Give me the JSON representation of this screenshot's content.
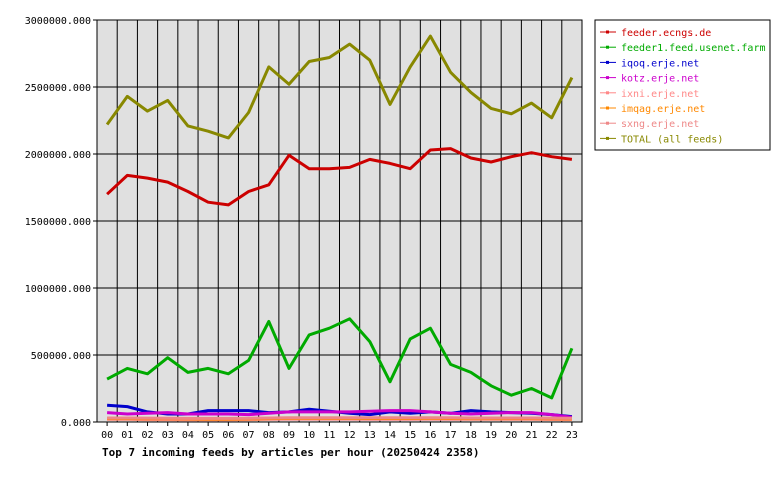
{
  "chart_data": {
    "type": "line",
    "title": "Top 7 incoming feeds by articles per hour (20250424 2358)",
    "xlabel": "",
    "ylabel": "",
    "categories": [
      "00",
      "01",
      "02",
      "03",
      "04",
      "05",
      "06",
      "07",
      "08",
      "09",
      "10",
      "11",
      "12",
      "13",
      "14",
      "15",
      "16",
      "17",
      "18",
      "19",
      "20",
      "21",
      "22",
      "23"
    ],
    "ylim": [
      0,
      3000000
    ],
    "yticks": [
      0,
      500000,
      1000000,
      1500000,
      2000000,
      2500000,
      3000000
    ],
    "ytick_labels": [
      "0.000",
      "500000.000",
      "1000000.000",
      "1500000.000",
      "2000000.000",
      "2500000.000",
      "3000000.000"
    ],
    "grid": true,
    "legend_position": "right",
    "series": [
      {
        "name": "feeder.ecngs.de",
        "color": "#cc0000",
        "values": [
          1700000,
          1840000,
          1820000,
          1790000,
          1720000,
          1640000,
          1620000,
          1720000,
          1770000,
          1990000,
          1890000,
          1890000,
          1900000,
          1960000,
          1930000,
          1890000,
          2030000,
          2040000,
          1970000,
          1940000,
          1980000,
          2010000,
          1980000,
          1960000
        ]
      },
      {
        "name": "feeder1.feed.usenet.farm",
        "color": "#00aa00",
        "values": [
          320000,
          400000,
          360000,
          480000,
          370000,
          400000,
          360000,
          460000,
          750000,
          400000,
          650000,
          700000,
          770000,
          600000,
          300000,
          620000,
          700000,
          430000,
          370000,
          270000,
          200000,
          250000,
          180000,
          550000
        ]
      },
      {
        "name": "iqoq.erje.net",
        "color": "#0000cc",
        "values": [
          125000,
          115000,
          75000,
          60000,
          60000,
          85000,
          85000,
          85000,
          70000,
          75000,
          95000,
          80000,
          65000,
          55000,
          75000,
          65000,
          75000,
          65000,
          85000,
          75000,
          70000,
          65000,
          55000,
          40000
        ]
      },
      {
        "name": "kotz.erje.net",
        "color": "#cc00cc",
        "values": [
          70000,
          60000,
          65000,
          70000,
          60000,
          60000,
          60000,
          55000,
          65000,
          75000,
          75000,
          75000,
          75000,
          80000,
          85000,
          85000,
          75000,
          65000,
          60000,
          65000,
          70000,
          70000,
          55000,
          35000
        ]
      },
      {
        "name": "ixni.erje.net",
        "color": "#ff8888",
        "values": [
          20000,
          20000,
          18000,
          18000,
          17000,
          17000,
          17000,
          18000,
          20000,
          22000,
          22000,
          22000,
          22000,
          21000,
          21000,
          21000,
          22000,
          21000,
          20000,
          20000,
          20000,
          20000,
          19000,
          18000
        ]
      },
      {
        "name": "imqag.erje.net",
        "color": "#ff8800",
        "values": [
          25000,
          25000,
          24000,
          24000,
          23000,
          22000,
          22000,
          23000,
          25000,
          27000,
          27000,
          27000,
          27000,
          26000,
          26000,
          26000,
          27000,
          26000,
          25000,
          25000,
          25000,
          25000,
          24000,
          23000
        ]
      },
      {
        "name": "sxng.erje.net",
        "color": "#ee8888",
        "values": [
          30000,
          30000,
          29000,
          28000,
          27000,
          27000,
          27000,
          28000,
          30000,
          32000,
          32000,
          32000,
          32000,
          31000,
          31000,
          31000,
          32000,
          31000,
          30000,
          30000,
          30000,
          30000,
          29000,
          28000
        ]
      },
      {
        "name": "TOTAL (all feeds)",
        "color": "#888800",
        "values": [
          2220000,
          2430000,
          2320000,
          2400000,
          2210000,
          2170000,
          2120000,
          2310000,
          2650000,
          2520000,
          2690000,
          2720000,
          2820000,
          2700000,
          2370000,
          2650000,
          2880000,
          2610000,
          2460000,
          2340000,
          2300000,
          2380000,
          2270000,
          2570000
        ]
      }
    ]
  }
}
